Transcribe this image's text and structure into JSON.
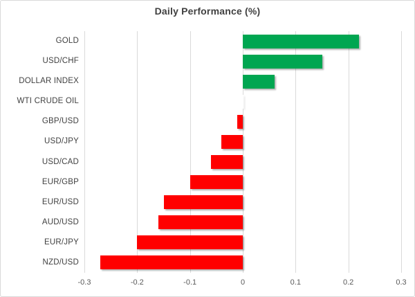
{
  "title": "Daily Performance (%)",
  "chart_data": {
    "type": "bar",
    "orientation": "horizontal",
    "title": "Daily Performance (%)",
    "categories": [
      "GOLD",
      "USD/CHF",
      "DOLLAR INDEX",
      "WTI CRUDE OIL",
      "GBP/USD",
      "USD/JPY",
      "USD/CAD",
      "EUR/GBP",
      "EUR/USD",
      "AUD/USD",
      "EUR/JPY",
      "NZD/USD"
    ],
    "values": [
      0.22,
      0.15,
      0.06,
      0.0,
      -0.01,
      -0.04,
      -0.06,
      -0.1,
      -0.15,
      -0.16,
      -0.2,
      -0.27
    ],
    "xlabel": "",
    "ylabel": "",
    "xlim": [
      -0.3,
      0.3
    ],
    "xticks": [
      -0.3,
      -0.2,
      -0.1,
      0,
      0.1,
      0.2,
      0.3
    ],
    "xtick_labels": [
      "-0.3",
      "-0.2",
      "-0.1",
      "0",
      "0.1",
      "0.2",
      "0.3"
    ],
    "grid": true,
    "legend": false,
    "positive_color": "#00A651",
    "negative_color": "#FF0000",
    "gridline_color": "#D9D9D9",
    "title_color": "#404040",
    "category_label_color": "#404040",
    "tick_label_color": "#595959",
    "background_color": "#FFFFFF"
  }
}
